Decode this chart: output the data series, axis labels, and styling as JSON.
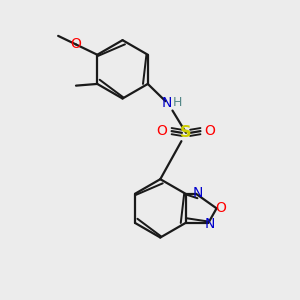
{
  "background_color": "#ececec",
  "line_color": "#1a1a1a",
  "lw": 1.6,
  "atom_colors": {
    "O": "#ff0000",
    "N": "#0000cc",
    "S": "#cccc00",
    "H": "#558888",
    "C": "#1a1a1a"
  },
  "fs": 9.5,
  "xlim": [
    -3.5,
    3.5
  ],
  "ylim": [
    -4.5,
    4.2
  ]
}
